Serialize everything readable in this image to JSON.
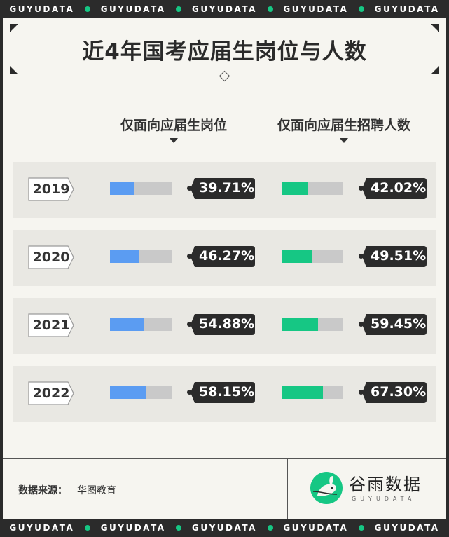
{
  "banner": {
    "items": [
      "GUYUDATA",
      "GUYUDATA",
      "GUYUDATA",
      "GUYUDATA",
      "GUYUDATA"
    ]
  },
  "title": "近4年国考应届生岗位与人数",
  "headers": {
    "positions": "仅面向应届生岗位",
    "recruits": "仅面向应届生招聘人数"
  },
  "colors": {
    "positions": "#5b9cf2",
    "recruits": "#16c784",
    "track": "#c9c9c9",
    "label_bg": "#2b2b2b"
  },
  "chart_data": {
    "type": "bar",
    "categories": [
      "2019",
      "2020",
      "2021",
      "2022"
    ],
    "series": [
      {
        "name": "仅面向应届生岗位",
        "values": [
          39.71,
          46.27,
          54.88,
          58.15
        ],
        "labels": [
          "39.71%",
          "46.27%",
          "54.88%",
          "58.15%"
        ]
      },
      {
        "name": "仅面向应届生招聘人数",
        "values": [
          42.02,
          49.51,
          59.45,
          67.3
        ],
        "labels": [
          "42.02%",
          "49.51%",
          "59.45%",
          "67.30%"
        ]
      }
    ],
    "unit": "%",
    "ylim": [
      0,
      100
    ]
  },
  "footer": {
    "source_label": "数据来源：",
    "source_value": "华图教育",
    "brand": "谷雨数据",
    "brand_sub": "GUYUDATA"
  }
}
